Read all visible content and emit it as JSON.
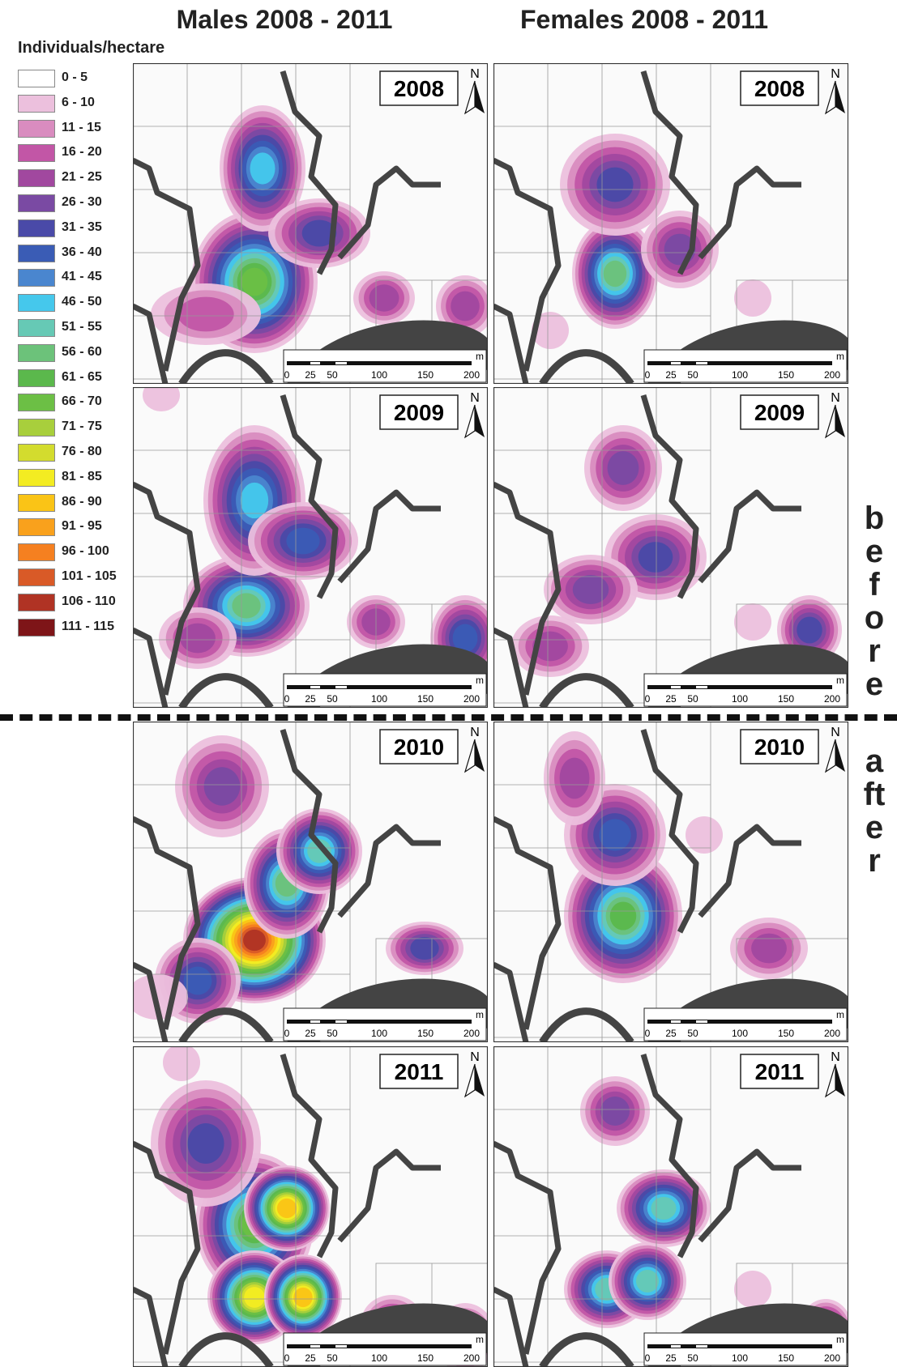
{
  "columns": [
    "Males 2008 - 2011",
    "Females 2008 - 2011"
  ],
  "legend": {
    "title": "Individuals/hectare",
    "items": [
      {
        "label": "0 - 5",
        "color": "#ffffff"
      },
      {
        "label": "6 - 10",
        "color": "#ecc0dd"
      },
      {
        "label": "11 - 15",
        "color": "#d98cbf"
      },
      {
        "label": "16 - 20",
        "color": "#c256a6"
      },
      {
        "label": "21 - 25",
        "color": "#a1489f"
      },
      {
        "label": "26 - 30",
        "color": "#7a4aa3"
      },
      {
        "label": "31 - 35",
        "color": "#4a4aa8"
      },
      {
        "label": "36 - 40",
        "color": "#3a5cb5"
      },
      {
        "label": "41 - 45",
        "color": "#4a86cf"
      },
      {
        "label": "46 - 50",
        "color": "#45c8ec"
      },
      {
        "label": "51 - 55",
        "color": "#66c9b5"
      },
      {
        "label": "56 - 60",
        "color": "#6cc27a"
      },
      {
        "label": "61 - 65",
        "color": "#5bb84c"
      },
      {
        "label": "66 - 70",
        "color": "#6cbf45"
      },
      {
        "label": "71 - 75",
        "color": "#a8cf3c"
      },
      {
        "label": "76 - 80",
        "color": "#d3dc2e"
      },
      {
        "label": "81 - 85",
        "color": "#f3ec22"
      },
      {
        "label": "86 - 90",
        "color": "#fac416"
      },
      {
        "label": "91 - 95",
        "color": "#f9a11c"
      },
      {
        "label": "96 - 100",
        "color": "#f58020"
      },
      {
        "label": "101 - 105",
        "color": "#d95a27"
      },
      {
        "label": "106 - 110",
        "color": "#b03324"
      },
      {
        "label": "111 - 115",
        "color": "#7e1518"
      }
    ]
  },
  "panels": [
    {
      "year": "2008"
    },
    {
      "year": "2008"
    },
    {
      "year": "2009"
    },
    {
      "year": "2009"
    },
    {
      "year": "2010"
    },
    {
      "year": "2010"
    },
    {
      "year": "2011"
    },
    {
      "year": "2011"
    }
  ],
  "north": "N",
  "scale_bar": {
    "labels": [
      "0",
      "25",
      "50",
      "100",
      "150",
      "200"
    ],
    "unit": "m"
  },
  "phases": [
    "before",
    "after"
  ]
}
